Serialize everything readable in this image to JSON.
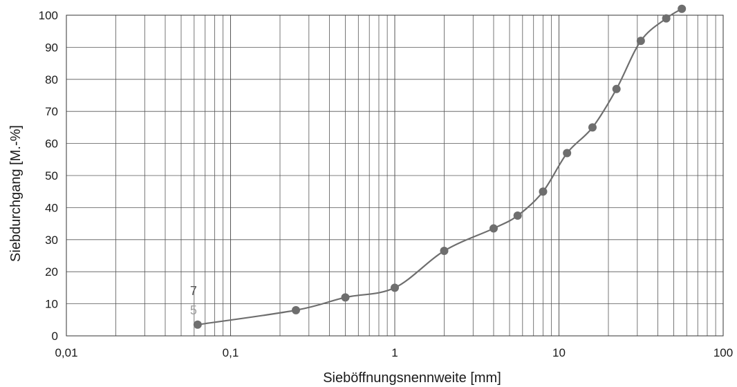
{
  "chart_data": {
    "type": "line",
    "xscale": "log",
    "xlim": [
      0.01,
      100
    ],
    "ylim": [
      0,
      100
    ],
    "xlabel": "Sieböffnungsnennweite [mm]",
    "ylabel": "Siebdurchgang [M.-%]",
    "xtick_labels": [
      "0,01",
      "0,1",
      "1",
      "10",
      "100"
    ],
    "xtick_values": [
      0.01,
      0.1,
      1,
      10,
      100
    ],
    "ytick_values": [
      0,
      10,
      20,
      30,
      40,
      50,
      60,
      70,
      80,
      90,
      100
    ],
    "grid": true,
    "series": [
      {
        "x": [
          0.063,
          0.25,
          0.5,
          1,
          2,
          4,
          5.6,
          8,
          11.2,
          16,
          22.4,
          31.5,
          45,
          56
        ],
        "y": [
          3.5,
          8,
          12,
          15,
          26.5,
          33.5,
          37.5,
          45,
          57,
          65,
          77,
          92,
          99,
          102
        ],
        "color": "#6e6e6e"
      }
    ],
    "annotations": [
      {
        "text": "7",
        "x": 0.063,
        "y": 14,
        "color": "#555555"
      },
      {
        "text": "5",
        "x": 0.063,
        "y": 8,
        "color": "#a0a0a0"
      }
    ]
  }
}
